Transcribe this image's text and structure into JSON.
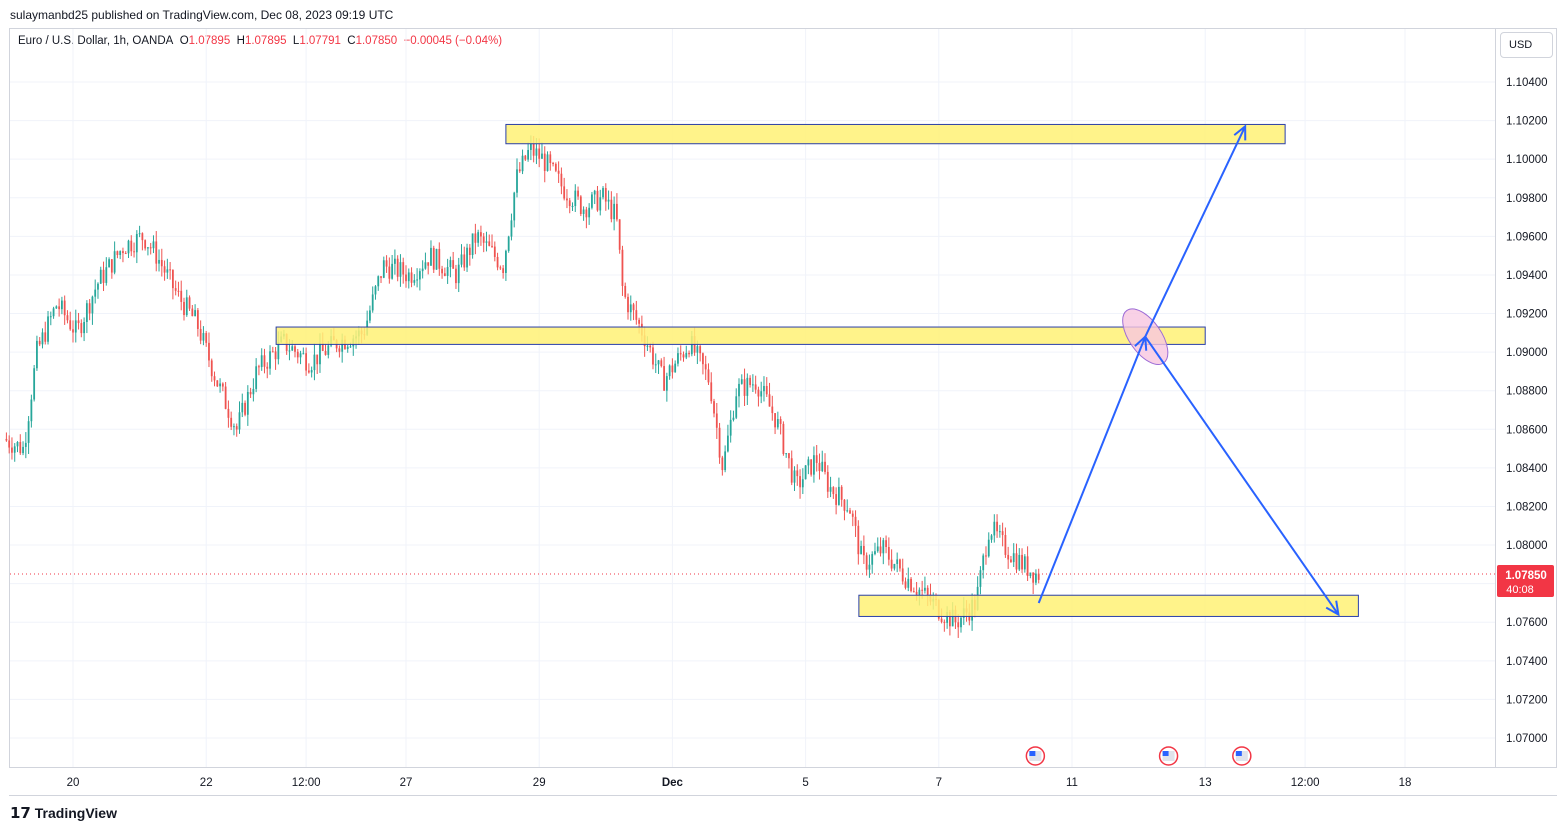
{
  "header": {
    "published_text": "sulaymanbd25 published on TradingView.com, Dec 08, 2023 09:19 UTC"
  },
  "legend": {
    "symbol": "Euro / U.S. Dollar, 1h, OANDA",
    "o_label": "O",
    "o_value": "1.07895",
    "h_label": "H",
    "h_value": "1.07895",
    "l_label": "L",
    "l_value": "1.07791",
    "c_label": "C",
    "c_value": "1.07850",
    "change": "−0.00045 (−0.04%)"
  },
  "currency_button": "USD",
  "last_price": {
    "value": "1.07850",
    "countdown": "40:08"
  },
  "footer": {
    "brand": "TradingView"
  },
  "colors": {
    "up": "#26a69a",
    "down": "#ef5350",
    "zone_fill": "#fff176",
    "zone_border": "#2a3fa8",
    "arrow": "#2962ff",
    "ellipse_fill": "#f7c6e0",
    "price_tag": "#f23645"
  },
  "chart_data": {
    "type": "candlestick",
    "symbol": "EUR/USD",
    "timeframe": "1h",
    "ylim": [
      1.069,
      1.107
    ],
    "y_ticks": [
      1.07,
      1.072,
      1.074,
      1.076,
      1.078,
      1.08,
      1.082,
      1.084,
      1.086,
      1.088,
      1.09,
      1.092,
      1.094,
      1.096,
      1.098,
      1.1,
      1.102,
      1.104
    ],
    "y_tick_labels": [
      "1.07000",
      "1.07200",
      "1.07400",
      "1.07600",
      "1.07800",
      "1.08000",
      "1.08200",
      "1.08400",
      "1.08600",
      "1.08800",
      "1.09000",
      "1.09200",
      "1.09400",
      "1.09600",
      "1.09800",
      "1.10000",
      "1.10200",
      "1.10400"
    ],
    "x_ticks": [
      {
        "label": "20",
        "day": 1.0
      },
      {
        "label": "22",
        "day": 3.0
      },
      {
        "label": "12:00",
        "day": 4.5
      },
      {
        "label": "27",
        "day": 6.0
      },
      {
        "label": "29",
        "day": 8.0
      },
      {
        "label": "Dec",
        "day": 10.0
      },
      {
        "label": "5",
        "day": 12.0
      },
      {
        "label": "7",
        "day": 14.0
      },
      {
        "label": "11",
        "day": 16.0
      },
      {
        "label": "13",
        "day": 18.0
      },
      {
        "label": "12:00",
        "day": 19.5
      },
      {
        "label": "18",
        "day": 21.0
      }
    ],
    "price_path": [
      [
        0.0,
        1.0855
      ],
      [
        0.3,
        1.085
      ],
      [
        0.5,
        1.09
      ],
      [
        0.8,
        1.0925
      ],
      [
        1.1,
        1.091
      ],
      [
        1.4,
        1.0935
      ],
      [
        1.8,
        1.0955
      ],
      [
        2.1,
        1.096
      ],
      [
        2.3,
        1.095
      ],
      [
        2.6,
        1.093
      ],
      [
        2.9,
        1.0915
      ],
      [
        3.2,
        1.0885
      ],
      [
        3.5,
        1.086
      ],
      [
        3.8,
        1.089
      ],
      [
        4.2,
        1.0905
      ],
      [
        4.6,
        1.0895
      ],
      [
        5.0,
        1.0905
      ],
      [
        5.4,
        1.091
      ],
      [
        5.7,
        1.0945
      ],
      [
        6.1,
        1.094
      ],
      [
        6.4,
        1.095
      ],
      [
        6.8,
        1.094
      ],
      [
        7.1,
        1.096
      ],
      [
        7.5,
        1.0945
      ],
      [
        7.7,
        1.099
      ],
      [
        7.9,
        1.1005
      ],
      [
        8.1,
        1.1
      ],
      [
        8.4,
        1.0985
      ],
      [
        8.7,
        1.0975
      ],
      [
        9.0,
        1.098
      ],
      [
        9.2,
        1.097
      ],
      [
        9.3,
        1.093
      ],
      [
        9.6,
        1.091
      ],
      [
        9.9,
        1.0885
      ],
      [
        10.3,
        1.0905
      ],
      [
        10.6,
        1.0885
      ],
      [
        10.8,
        1.084
      ],
      [
        11.0,
        1.088
      ],
      [
        11.3,
        1.0885
      ],
      [
        11.6,
        1.0865
      ],
      [
        11.9,
        1.083
      ],
      [
        12.2,
        1.0845
      ],
      [
        12.4,
        1.083
      ],
      [
        12.7,
        1.082
      ],
      [
        12.9,
        1.079
      ],
      [
        13.2,
        1.0798
      ],
      [
        13.5,
        1.0785
      ],
      [
        13.8,
        1.0775
      ],
      [
        14.1,
        1.0765
      ],
      [
        14.3,
        1.076
      ],
      [
        14.6,
        1.077
      ],
      [
        14.8,
        1.081
      ],
      [
        15.0,
        1.08
      ],
      [
        15.3,
        1.079
      ],
      [
        15.5,
        1.0785
      ]
    ],
    "last_price": 1.0785,
    "zones": [
      {
        "from_day": 7.5,
        "to_day": 19.2,
        "low": 1.1008,
        "high": 1.1018
      },
      {
        "from_day": 4.05,
        "to_day": 18.0,
        "low": 1.0904,
        "high": 1.0913
      },
      {
        "from_day": 12.8,
        "to_day": 20.3,
        "low": 1.0763,
        "high": 1.0774
      }
    ],
    "arrows": [
      {
        "from": [
          15.5,
          1.077
        ],
        "to": [
          17.1,
          1.0908
        ]
      },
      {
        "from": [
          17.1,
          1.0908
        ],
        "to": [
          18.6,
          1.1017
        ]
      },
      {
        "from": [
          17.1,
          1.0908
        ],
        "to": [
          20.0,
          1.0764
        ]
      }
    ],
    "highlight": {
      "day": 17.1,
      "price": 1.0908
    },
    "event_icons_days": [
      15.45,
      17.45,
      18.55
    ]
  }
}
